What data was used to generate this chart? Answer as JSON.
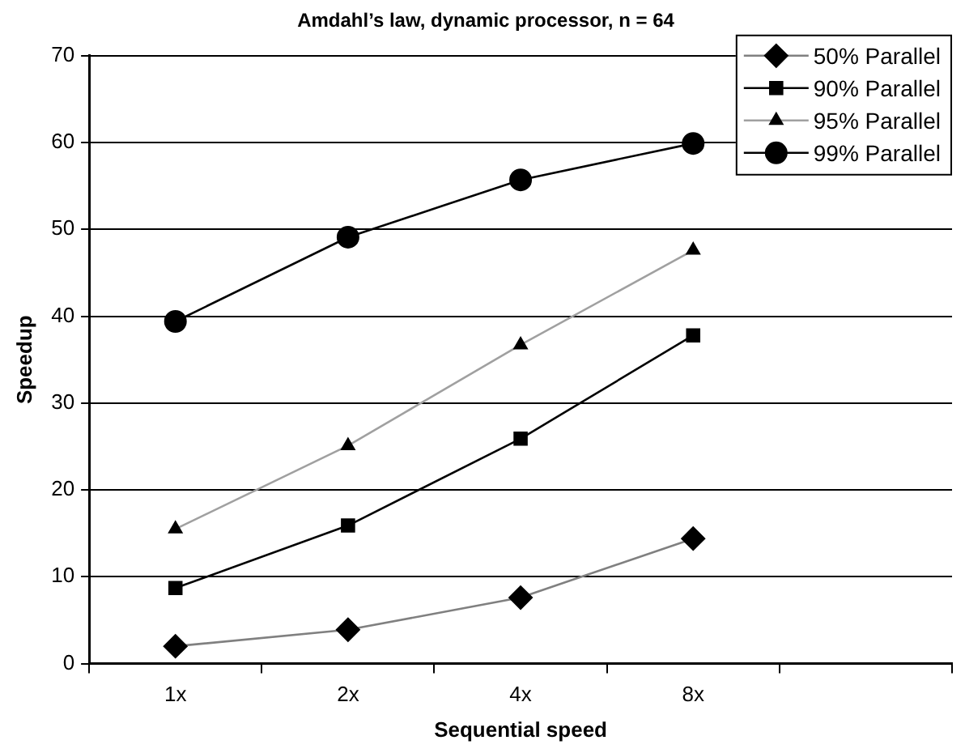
{
  "chart_data": {
    "type": "line",
    "title": "Amdahl’s law, dynamic processor, n = 64",
    "xlabel": "Sequential speed",
    "ylabel": "Speedup",
    "categories": [
      "1x",
      "2x",
      "4x",
      "8x",
      null
    ],
    "series": [
      {
        "name": "50% Parallel",
        "color": "#808080",
        "marker": "diamond",
        "values": [
          2.0,
          3.9,
          7.6,
          14.4,
          null
        ]
      },
      {
        "name": "90% Parallel",
        "color": "#000000",
        "marker": "square",
        "values": [
          8.7,
          15.9,
          25.9,
          37.8,
          null
        ]
      },
      {
        "name": "95% Parallel",
        "color": "#a0a0a0",
        "marker": "triangle",
        "values": [
          15.5,
          25.1,
          36.7,
          47.6,
          null
        ]
      },
      {
        "name": "99% Parallel",
        "color": "#000000",
        "marker": "circle",
        "values": [
          39.4,
          49.1,
          55.7,
          59.9,
          null
        ]
      }
    ],
    "ylim": [
      0,
      70
    ],
    "yticks": [
      0,
      10,
      20,
      30,
      40,
      50,
      60,
      70
    ],
    "grid": "y",
    "legend": "top right"
  }
}
